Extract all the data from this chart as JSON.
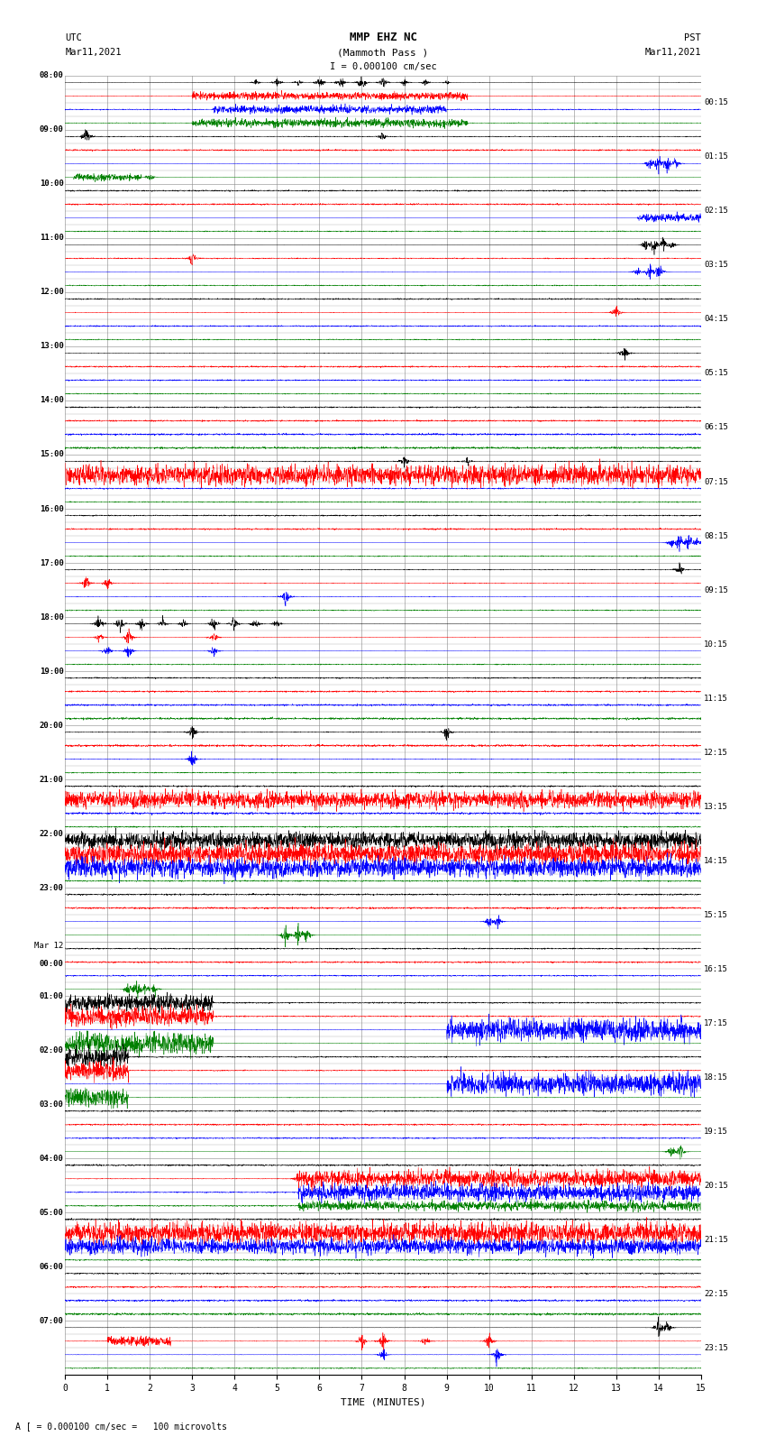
{
  "title_line1": "MMP EHZ NC",
  "title_line2": "(Mammoth Pass )",
  "scale_text": "I = 0.000100 cm/sec",
  "footer_text": "A [ = 0.000100 cm/sec =   100 microvolts",
  "utc_label": "UTC",
  "utc_date": "Mar11,2021",
  "pst_label": "PST",
  "pst_date": "Mar11,2021",
  "xlabel": "TIME (MINUTES)",
  "left_times": [
    "08:00",
    "09:00",
    "10:00",
    "11:00",
    "12:00",
    "13:00",
    "14:00",
    "15:00",
    "16:00",
    "17:00",
    "18:00",
    "19:00",
    "20:00",
    "21:00",
    "22:00",
    "23:00",
    "Mar 12\n00:00",
    "01:00",
    "02:00",
    "03:00",
    "04:00",
    "05:00",
    "06:00",
    "07:00"
  ],
  "right_times": [
    "00:15",
    "01:15",
    "02:15",
    "03:15",
    "04:15",
    "05:15",
    "06:15",
    "07:15",
    "08:15",
    "09:15",
    "10:15",
    "11:15",
    "12:15",
    "13:15",
    "14:15",
    "15:15",
    "16:15",
    "17:15",
    "18:15",
    "19:15",
    "20:15",
    "21:15",
    "22:15",
    "23:15"
  ],
  "n_rows": 24,
  "n_cols": 4,
  "colors": [
    "black",
    "red",
    "blue",
    "green"
  ],
  "fig_width": 8.5,
  "fig_height": 16.13,
  "bg_color": "white",
  "grid_color": "#888888",
  "xticks": [
    0,
    1,
    2,
    3,
    4,
    5,
    6,
    7,
    8,
    9,
    10,
    11,
    12,
    13,
    14,
    15
  ]
}
